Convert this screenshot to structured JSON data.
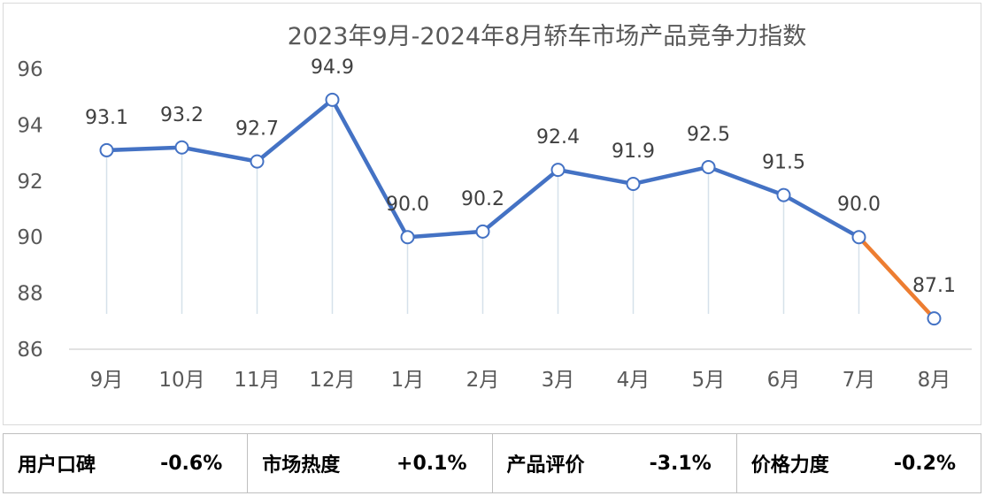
{
  "chart_data": {
    "type": "line",
    "title": "2023年9月-2024年8月轿车市场产品竞争力指数",
    "categories": [
      "9月",
      "10月",
      "11月",
      "12月",
      "1月",
      "2月",
      "3月",
      "4月",
      "5月",
      "6月",
      "7月",
      "8月"
    ],
    "values": [
      93.1,
      93.2,
      92.7,
      94.9,
      90.0,
      90.2,
      92.4,
      91.9,
      92.5,
      91.5,
      90.0,
      87.1
    ],
    "value_labels": [
      "93.1",
      "93.2",
      "92.7",
      "94.9",
      "90.0",
      "90.2",
      "92.4",
      "91.9",
      "92.5",
      "91.5",
      "90.0",
      "87.1"
    ],
    "ylim": [
      86,
      96
    ],
    "yticks": [
      96,
      94,
      92,
      90,
      88,
      86
    ],
    "xlabel": "",
    "ylabel": "",
    "grid": false,
    "line_color": "#4472c4",
    "highlight_color": "#ed7d31",
    "drop_line_color": "#d6e1ea"
  },
  "stats": [
    {
      "label": "用户口碑",
      "value": "-0.6%"
    },
    {
      "label": "市场热度",
      "value": "+0.1%"
    },
    {
      "label": "产品评价",
      "value": "-3.1%"
    },
    {
      "label": "价格力度",
      "value": "-0.2%"
    }
  ]
}
